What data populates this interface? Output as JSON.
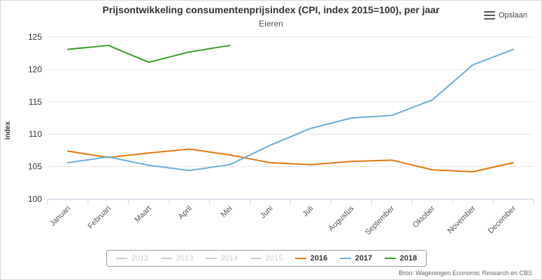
{
  "header": {
    "title": "Prijsontwikkeling consumentenprijsindex (CPI, index 2015=100), per jaar",
    "subtitle": "Eieren",
    "export_label": "Opslaan",
    "export_icon": "hamburger-icon"
  },
  "legend": {
    "items": [
      {
        "label": "2012",
        "color": "#cccccc",
        "visible": false
      },
      {
        "label": "2013",
        "color": "#cccccc",
        "visible": false
      },
      {
        "label": "2014",
        "color": "#cccccc",
        "visible": false
      },
      {
        "label": "2015",
        "color": "#cccccc",
        "visible": false
      },
      {
        "label": "2016",
        "color": "#e3790f",
        "visible": true
      },
      {
        "label": "2017",
        "color": "#6aaed6",
        "visible": true
      },
      {
        "label": "2018",
        "color": "#3a9a2a",
        "visible": true
      }
    ]
  },
  "source": "Bron: Wageningen Economic Research en CBS",
  "chart_data": {
    "type": "line",
    "title": "Prijsontwikkeling consumentenprijsindex (CPI, index 2015=100), per jaar",
    "subtitle": "Eieren",
    "xlabel": "",
    "ylabel": "index",
    "ylim": [
      100,
      125
    ],
    "yticks": [
      100,
      105,
      110,
      115,
      120,
      125
    ],
    "grid": true,
    "legend_position": "bottom",
    "categories": [
      "Januari",
      "Februari",
      "Maart",
      "April",
      "Mei",
      "Juni",
      "Juli",
      "Augustus",
      "September",
      "Oktober",
      "November",
      "December"
    ],
    "series": [
      {
        "name": "2016",
        "color": "#e3790f",
        "values": [
          107.4,
          106.4,
          107.1,
          107.7,
          106.8,
          105.6,
          105.3,
          105.8,
          106.0,
          104.5,
          104.2,
          105.6
        ]
      },
      {
        "name": "2017",
        "color": "#6aaed6",
        "values": [
          105.6,
          106.5,
          105.2,
          104.4,
          105.3,
          108.3,
          110.9,
          112.5,
          112.9,
          115.3,
          120.7,
          123.1
        ]
      },
      {
        "name": "2018",
        "color": "#3a9a2a",
        "values": [
          123.1,
          123.7,
          121.1,
          122.7,
          123.7,
          null,
          null,
          null,
          null,
          null,
          null,
          null
        ]
      }
    ]
  }
}
